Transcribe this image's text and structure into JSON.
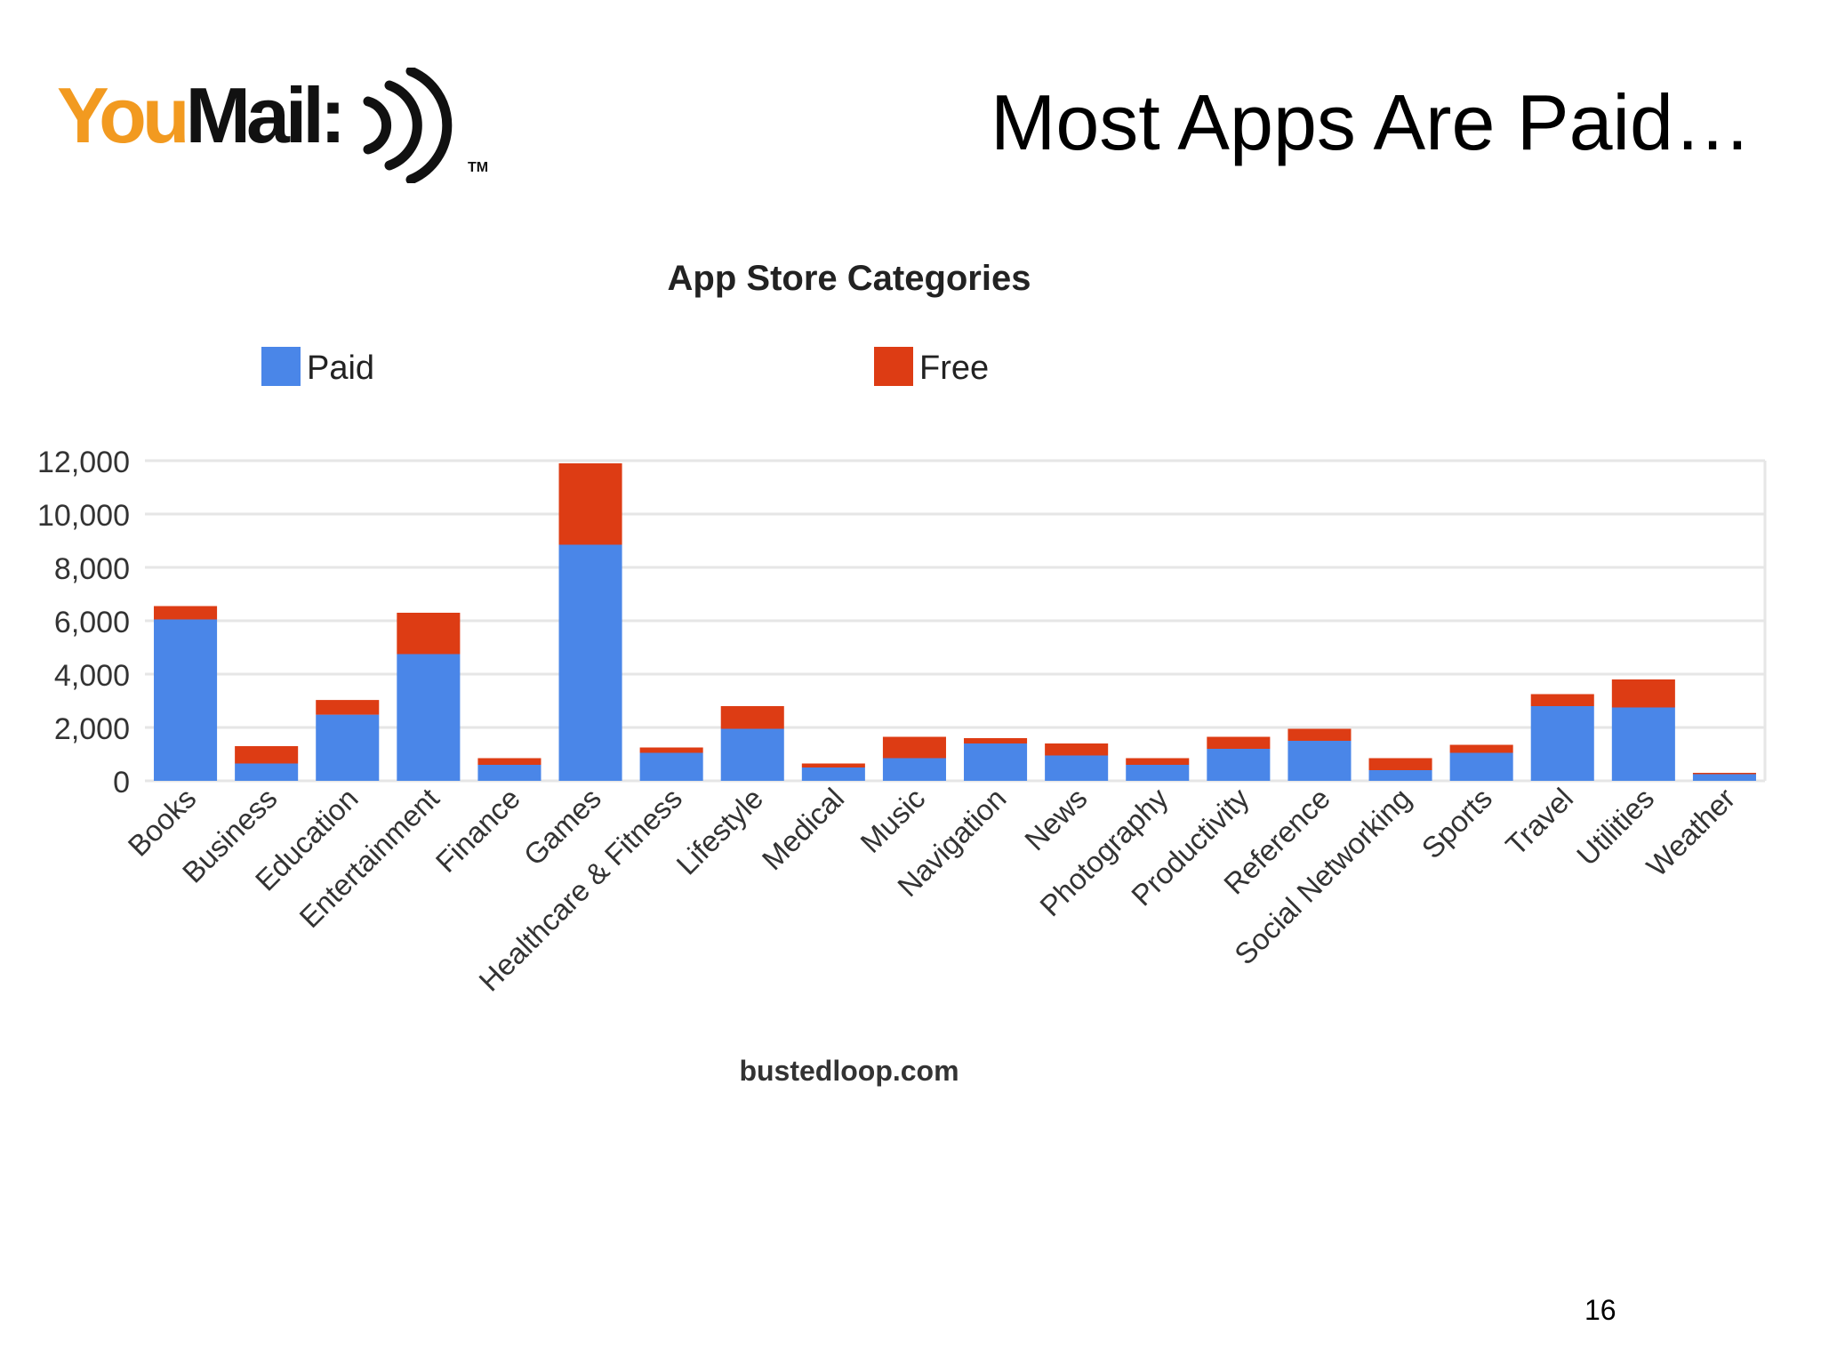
{
  "header": {
    "logo_text_part1": "You",
    "logo_text_part2": "Mail:",
    "logo_tm": "TM",
    "title": "Most Apps Are Paid…"
  },
  "footer": {
    "page_number": "16"
  },
  "colors": {
    "paid": "#4a86e8",
    "free": "#dd3c14",
    "grid": "#e6e6e6",
    "logo_orange": "#f29a20"
  },
  "icons": {
    "logo_waves": "sound-waves-icon"
  },
  "chart_data": {
    "type": "bar",
    "stacked": true,
    "title": "App Store Categories",
    "source": "bustedloop.com",
    "legend_position": "top",
    "grid": true,
    "ylim": [
      0,
      12000
    ],
    "yticks": [
      0,
      2000,
      4000,
      6000,
      8000,
      10000,
      12000
    ],
    "ytick_labels": [
      "0",
      "2,000",
      "4,000",
      "6,000",
      "8,000",
      "10,000",
      "12,000"
    ],
    "categories": [
      "Books",
      "Business",
      "Education",
      "Entertainment",
      "Finance",
      "Games",
      "Healthcare & Fitness",
      "Lifestyle",
      "Medical",
      "Music",
      "Navigation",
      "News",
      "Photography",
      "Productivity",
      "Reference",
      "Social Networking",
      "Sports",
      "Travel",
      "Utilities",
      "Weather"
    ],
    "series": [
      {
        "name": "Paid",
        "values": [
          6050,
          650,
          2480,
          4750,
          600,
          8850,
          1050,
          1950,
          500,
          850,
          1400,
          950,
          600,
          1200,
          1500,
          400,
          1050,
          2800,
          2750,
          250
        ]
      },
      {
        "name": "Free",
        "values": [
          500,
          650,
          550,
          1550,
          250,
          3050,
          200,
          850,
          150,
          800,
          200,
          450,
          250,
          450,
          450,
          450,
          300,
          450,
          1050,
          50
        ]
      }
    ]
  }
}
